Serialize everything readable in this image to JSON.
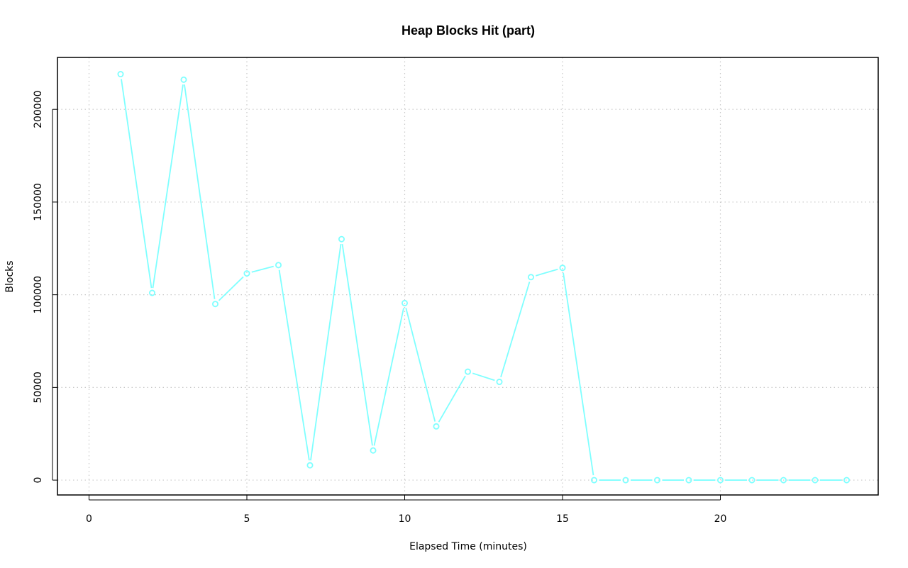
{
  "chart_data": {
    "type": "line",
    "title": "Heap Blocks Hit (part)",
    "xlabel": "Elapsed Time (minutes)",
    "ylabel": "Blocks",
    "xlim": [
      -1,
      25
    ],
    "ylim": [
      -8000,
      228000
    ],
    "x_ticks": [
      0,
      5,
      10,
      15,
      20
    ],
    "y_ticks": [
      0,
      50000,
      100000,
      150000,
      200000
    ],
    "grid": true,
    "legend": "none",
    "series": [
      {
        "color": "#7fffff",
        "marker": "circle",
        "x": [
          1,
          2,
          3,
          4,
          5,
          6,
          7,
          8,
          9,
          10,
          11,
          12,
          13,
          14,
          15,
          16,
          17,
          18,
          19,
          20,
          21,
          22,
          23,
          24
        ],
        "y": [
          219000,
          101000,
          216000,
          95000,
          111500,
          116000,
          8000,
          130000,
          16000,
          95500,
          29000,
          58500,
          53000,
          109500,
          114500,
          0,
          0,
          0,
          0,
          0,
          0,
          0,
          0,
          0
        ]
      }
    ]
  }
}
